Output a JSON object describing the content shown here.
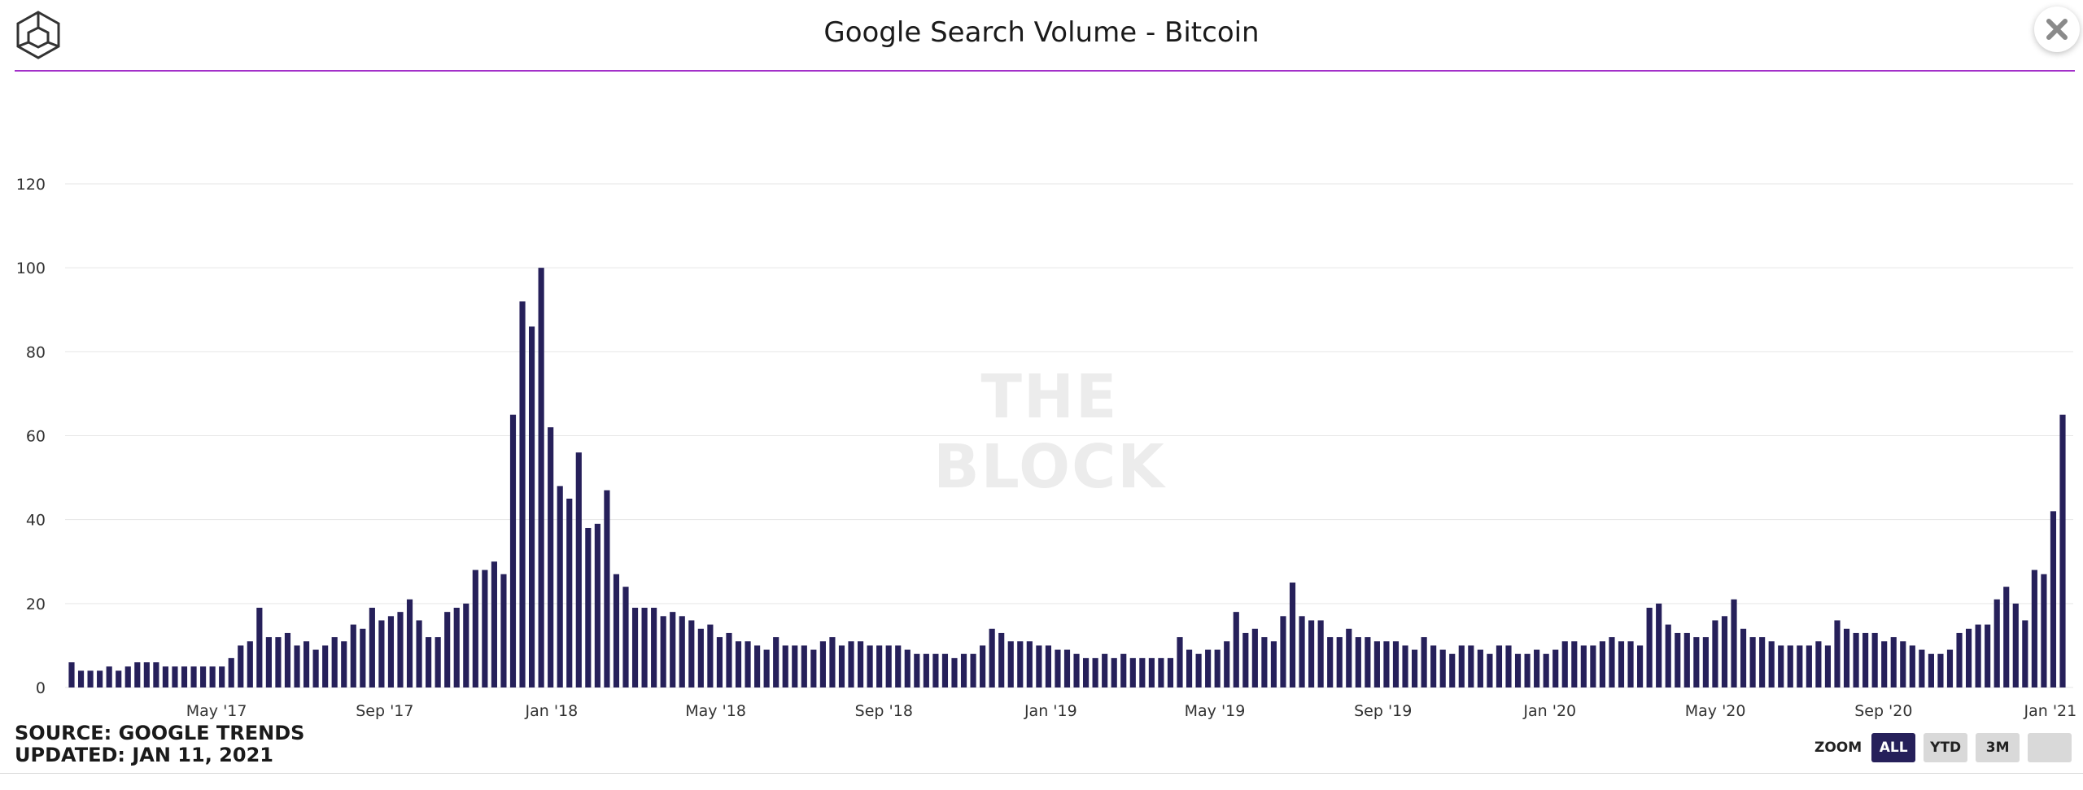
{
  "header": {
    "title": "Google Search Volume - Bitcoin",
    "logo_icon": "the-block-cube-icon",
    "close_icon": "close-icon",
    "accent_color": "#a330c9"
  },
  "footer": {
    "source": "SOURCE: GOOGLE TRENDS",
    "updated": "UPDATED: JAN 11, 2021"
  },
  "zoom": {
    "label": "ZOOM",
    "buttons": [
      "ALL",
      "YTD",
      "3M",
      ""
    ],
    "active": "ALL"
  },
  "watermark": "THE BLOCK",
  "chart_data": {
    "type": "bar",
    "title": "Google Search Volume - Bitcoin",
    "xlabel": "",
    "ylabel": "",
    "ylim": [
      0,
      120
    ],
    "yticks": [
      0,
      20,
      40,
      60,
      80,
      100,
      120
    ],
    "grid": true,
    "bar_color": "#26205a",
    "x_range": [
      "2017-01-15",
      "2021-01-10"
    ],
    "xtick_labels": [
      "May '17",
      "Sep '17",
      "Jan '18",
      "May '18",
      "Sep '18",
      "Jan '19",
      "May '19",
      "Sep '19",
      "Jan '20",
      "May '20",
      "Sep '20",
      "Jan '21"
    ],
    "xtick_dates": [
      "2017-05-01",
      "2017-09-01",
      "2018-01-01",
      "2018-05-01",
      "2018-09-01",
      "2019-01-01",
      "2019-05-01",
      "2019-09-01",
      "2020-01-01",
      "2020-05-01",
      "2020-09-01",
      "2021-01-01"
    ],
    "values": [
      6,
      4,
      4,
      4,
      5,
      4,
      5,
      6,
      6,
      6,
      5,
      5,
      5,
      5,
      5,
      5,
      5,
      7,
      10,
      11,
      19,
      12,
      12,
      13,
      10,
      11,
      9,
      10,
      12,
      11,
      15,
      14,
      19,
      16,
      17,
      18,
      21,
      16,
      12,
      12,
      18,
      19,
      20,
      28,
      28,
      30,
      27,
      65,
      92,
      86,
      100,
      62,
      48,
      45,
      56,
      38,
      39,
      47,
      27,
      24,
      19,
      19,
      19,
      17,
      18,
      17,
      16,
      14,
      15,
      12,
      13,
      11,
      11,
      10,
      9,
      12,
      10,
      10,
      10,
      9,
      11,
      12,
      10,
      11,
      11,
      10,
      10,
      10,
      10,
      9,
      8,
      8,
      8,
      8,
      7,
      8,
      8,
      10,
      14,
      13,
      11,
      11,
      11,
      10,
      10,
      9,
      9,
      8,
      7,
      7,
      8,
      7,
      8,
      7,
      7,
      7,
      7,
      7,
      12,
      9,
      8,
      9,
      9,
      11,
      18,
      13,
      14,
      12,
      11,
      17,
      25,
      17,
      16,
      16,
      12,
      12,
      14,
      12,
      12,
      11,
      11,
      11,
      10,
      9,
      12,
      10,
      9,
      8,
      10,
      10,
      9,
      8,
      10,
      10,
      8,
      8,
      9,
      8,
      9,
      11,
      11,
      10,
      10,
      11,
      12,
      11,
      11,
      10,
      19,
      20,
      15,
      13,
      13,
      12,
      12,
      16,
      17,
      21,
      14,
      12,
      12,
      11,
      10,
      10,
      10,
      10,
      11,
      10,
      16,
      14,
      13,
      13,
      13,
      11,
      12,
      11,
      10,
      9,
      8,
      8,
      9,
      13,
      14,
      15,
      15,
      21,
      24,
      20,
      16,
      28,
      27,
      42,
      65
    ]
  }
}
